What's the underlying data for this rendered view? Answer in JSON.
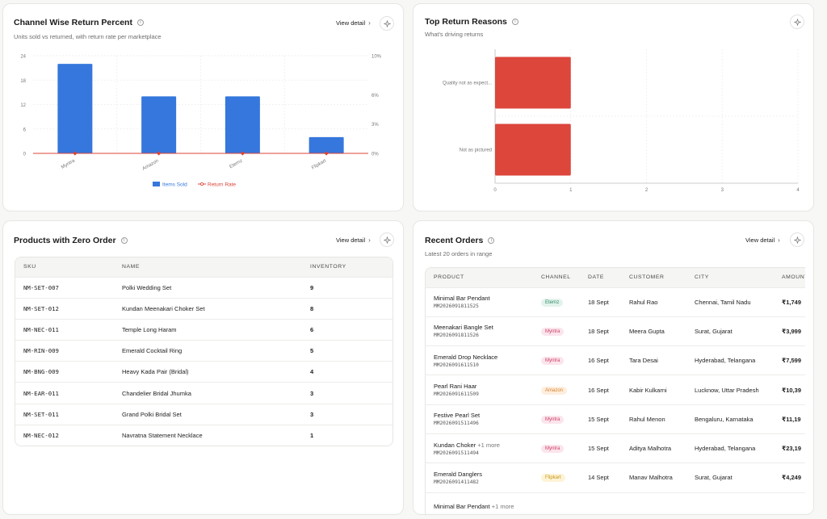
{
  "channel_card": {
    "title": "Channel Wise Return Percent",
    "subtitle": "Units sold vs returned, with return rate per marketplace",
    "view_detail": "View detail"
  },
  "reasons_card": {
    "title": "Top Return Reasons",
    "subtitle": "What's driving returns"
  },
  "zero_card": {
    "title": "Products with Zero Order",
    "view_detail": "View detail",
    "columns": [
      "SKU",
      "NAME",
      "INVENTORY"
    ],
    "rows": [
      {
        "sku": "NM-SET-007",
        "name": "Polki Wedding Set",
        "inventory": "9"
      },
      {
        "sku": "NM-SET-012",
        "name": "Kundan Meenakari Choker Set",
        "inventory": "8"
      },
      {
        "sku": "NM-NEC-011",
        "name": "Temple Long Haram",
        "inventory": "6"
      },
      {
        "sku": "NM-RIN-009",
        "name": "Emerald Cocktail Ring",
        "inventory": "5"
      },
      {
        "sku": "NM-BNG-009",
        "name": "Heavy Kada Pair (Bridal)",
        "inventory": "4"
      },
      {
        "sku": "NM-EAR-011",
        "name": "Chandelier Bridal Jhumka",
        "inventory": "3"
      },
      {
        "sku": "NM-SET-011",
        "name": "Grand Polki Bridal Set",
        "inventory": "3"
      },
      {
        "sku": "NM-NEC-012",
        "name": "Navratna Statement Necklace",
        "inventory": "1"
      }
    ]
  },
  "orders_card": {
    "title": "Recent Orders",
    "subtitle": "Latest 20 orders in range",
    "view_detail": "View detail",
    "columns": [
      "PRODUCT",
      "CHANNEL",
      "DATE",
      "CUSTOMER",
      "CITY",
      "AMOUNT"
    ],
    "rows": [
      {
        "product": "Minimal Bar Pendant",
        "more": "",
        "order_id": "MM2026091811525",
        "channel": "Eternz",
        "date": "18 Sept",
        "customer": "Rahul Rao",
        "city": "Chennai, Tamil Nadu",
        "amount": "₹1,749"
      },
      {
        "product": "Meenakari Bangle Set",
        "more": "",
        "order_id": "MM2026091811526",
        "channel": "Myntra",
        "date": "18 Sept",
        "customer": "Meera Gupta",
        "city": "Surat, Gujarat",
        "amount": "₹3,999"
      },
      {
        "product": "Emerald Drop Necklace",
        "more": "",
        "order_id": "MM2026091611510",
        "channel": "Myntra",
        "date": "16 Sept",
        "customer": "Tara Desai",
        "city": "Hyderabad, Telangana",
        "amount": "₹7,599"
      },
      {
        "product": "Pearl Rani Haar",
        "more": "",
        "order_id": "MM2026091611509",
        "channel": "Amazon",
        "date": "16 Sept",
        "customer": "Kabir Kulkarni",
        "city": "Lucknow, Uttar Pradesh",
        "amount": "₹10,39"
      },
      {
        "product": "Festive Pearl Set",
        "more": "",
        "order_id": "MM2026091511496",
        "channel": "Myntra",
        "date": "15 Sept",
        "customer": "Rahul Menon",
        "city": "Bengaluru, Karnataka",
        "amount": "₹11,19"
      },
      {
        "product": "Kundan Choker",
        "more": "+1 more",
        "order_id": "MM2026091511494",
        "channel": "Myntra",
        "date": "15 Sept",
        "customer": "Aditya Malhotra",
        "city": "Hyderabad, Telangana",
        "amount": "₹23,19"
      },
      {
        "product": "Emerald Danglers",
        "more": "",
        "order_id": "MM2026091411482",
        "channel": "Flipkart",
        "date": "14 Sept",
        "customer": "Manav Malhotra",
        "city": "Surat, Gujarat",
        "amount": "₹4,249"
      },
      {
        "product": "Minimal Bar Pendant",
        "more": "+1 more",
        "order_id": "",
        "channel": "",
        "date": "",
        "customer": "",
        "city": "",
        "amount": ""
      }
    ]
  },
  "colors": {
    "bar_blue": "#3577dc",
    "return_red": "#dc4337",
    "reason_red": "#dc463b",
    "badges": {
      "Eternz": {
        "bg": "#e3f3ec",
        "fg": "#2d8a64"
      },
      "Myntra": {
        "bg": "#fbe5ec",
        "fg": "#cc3b66"
      },
      "Amazon": {
        "bg": "#fdeede",
        "fg": "#d9822b"
      },
      "Flipkart": {
        "bg": "#fdf3d6",
        "fg": "#c79718"
      }
    }
  },
  "chart_data": [
    {
      "type": "bar",
      "categories": [
        "Myntra",
        "Amazon",
        "Eternz",
        "Flipkart"
      ],
      "series": [
        {
          "name": "Items Sold",
          "values": [
            22,
            14,
            14,
            4
          ],
          "axis": "left"
        },
        {
          "name": "Return Rate",
          "type": "line",
          "values": [
            0,
            0,
            0,
            0
          ],
          "axis": "right"
        }
      ],
      "y_ticks": [
        "0",
        "6",
        "12",
        "18",
        "24"
      ],
      "y_right_ticks": [
        "0%",
        "3%",
        "6%",
        "10%"
      ],
      "ylim": [
        0,
        24
      ],
      "y2lim": [
        0,
        10
      ],
      "legend_position": "bottom",
      "grid": true
    },
    {
      "type": "bar",
      "orientation": "horizontal",
      "categories": [
        "Quality not as expect...",
        "Not as pictured"
      ],
      "values": [
        1,
        1
      ],
      "x_ticks": [
        "0",
        "1",
        "2",
        "3",
        "4"
      ],
      "xlim": [
        0,
        4
      ],
      "grid": true
    }
  ]
}
